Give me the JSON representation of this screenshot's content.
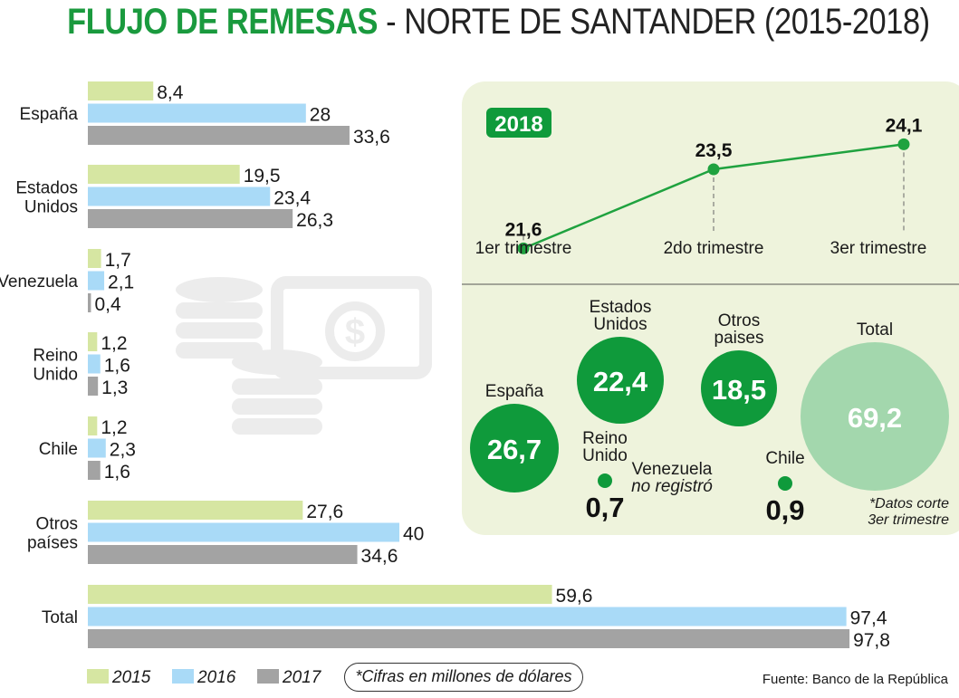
{
  "title": {
    "highlight": "FLUJO DE REMESAS",
    "rest": " - NORTE DE SANTANDER (2015-2018)"
  },
  "colors": {
    "s2015": "#d6e6a2",
    "s2016": "#a9daf7",
    "s2017": "#a3a3a3",
    "green_dark": "#0f9a3b",
    "green_light": "#a3d7ad",
    "panel_bg": "#eef3dc",
    "title_green": "#1a9a3e"
  },
  "chart_data": [
    {
      "type": "bar",
      "orientation": "horizontal",
      "title": "",
      "categories": [
        "España",
        "Estados Unidos",
        "Venezuela",
        "Reino Unido",
        "Chile",
        "Otros países",
        "Total"
      ],
      "category_lines": [
        [
          "España"
        ],
        [
          "Estados",
          "Unidos"
        ],
        [
          "Venezuela"
        ],
        [
          "Reino",
          "Unido"
        ],
        [
          "Chile"
        ],
        [
          "Otros",
          "países"
        ],
        [
          "Total"
        ]
      ],
      "series": [
        {
          "name": "2015",
          "values": [
            8.4,
            19.5,
            1.7,
            1.2,
            1.2,
            27.6,
            59.6
          ],
          "labels": [
            "8,4",
            "19,5",
            "1,7",
            "1,2",
            "1,2",
            "27,6",
            "59,6"
          ]
        },
        {
          "name": "2016",
          "values": [
            28,
            23.4,
            2.1,
            1.6,
            2.3,
            40,
            97.4
          ],
          "labels": [
            "28",
            "23,4",
            "2,1",
            "1,6",
            "2,3",
            "40",
            "97,4"
          ]
        },
        {
          "name": "2017",
          "values": [
            33.6,
            26.3,
            0.4,
            1.3,
            1.6,
            34.6,
            97.8
          ],
          "labels": [
            "33,6",
            "26,3",
            "0,4",
            "1,3",
            "1,6",
            "34,6",
            "97,8"
          ]
        }
      ],
      "xlim": [
        0,
        100
      ],
      "grid": false
    },
    {
      "type": "line",
      "title": "2018",
      "categories": [
        "1er trimestre",
        "2do trimestre",
        "3er trimestre"
      ],
      "values": [
        21.6,
        23.5,
        24.1
      ],
      "labels": [
        "21,6",
        "23,5",
        "24,1"
      ],
      "ylim": [
        20.5,
        25
      ]
    },
    {
      "type": "bubble",
      "items": [
        {
          "name": "España",
          "lines": [
            "España"
          ],
          "value": 26.7,
          "label": "26,7"
        },
        {
          "name": "Estados Unidos",
          "lines": [
            "Estados",
            "Unidos"
          ],
          "value": 22.4,
          "label": "22,4"
        },
        {
          "name": "Otros paises",
          "lines": [
            "Otros",
            "paises"
          ],
          "value": 18.5,
          "label": "18,5"
        },
        {
          "name": "Total",
          "lines": [
            "Total"
          ],
          "value": 69.2,
          "label": "69,2",
          "highlight": true
        },
        {
          "name": "Reino Unido",
          "lines": [
            "Reino",
            "Unido"
          ],
          "value": 0.7,
          "label": "0,7"
        },
        {
          "name": "Chile",
          "lines": [
            "Chile"
          ],
          "value": 0.9,
          "label": "0,9"
        }
      ],
      "note_venezuela": [
        "Venezuela",
        "no registró"
      ],
      "note_corte": [
        "*Datos corte",
        "3er trimestre"
      ]
    }
  ],
  "legend": {
    "items": [
      {
        "label": "2015",
        "color": "#d6e6a2"
      },
      {
        "label": "2016",
        "color": "#a9daf7"
      },
      {
        "label": "2017",
        "color": "#a3a3a3"
      }
    ],
    "footnote": "*Cifras en millones de dólares"
  },
  "source": "Fuente: Banco de la República"
}
